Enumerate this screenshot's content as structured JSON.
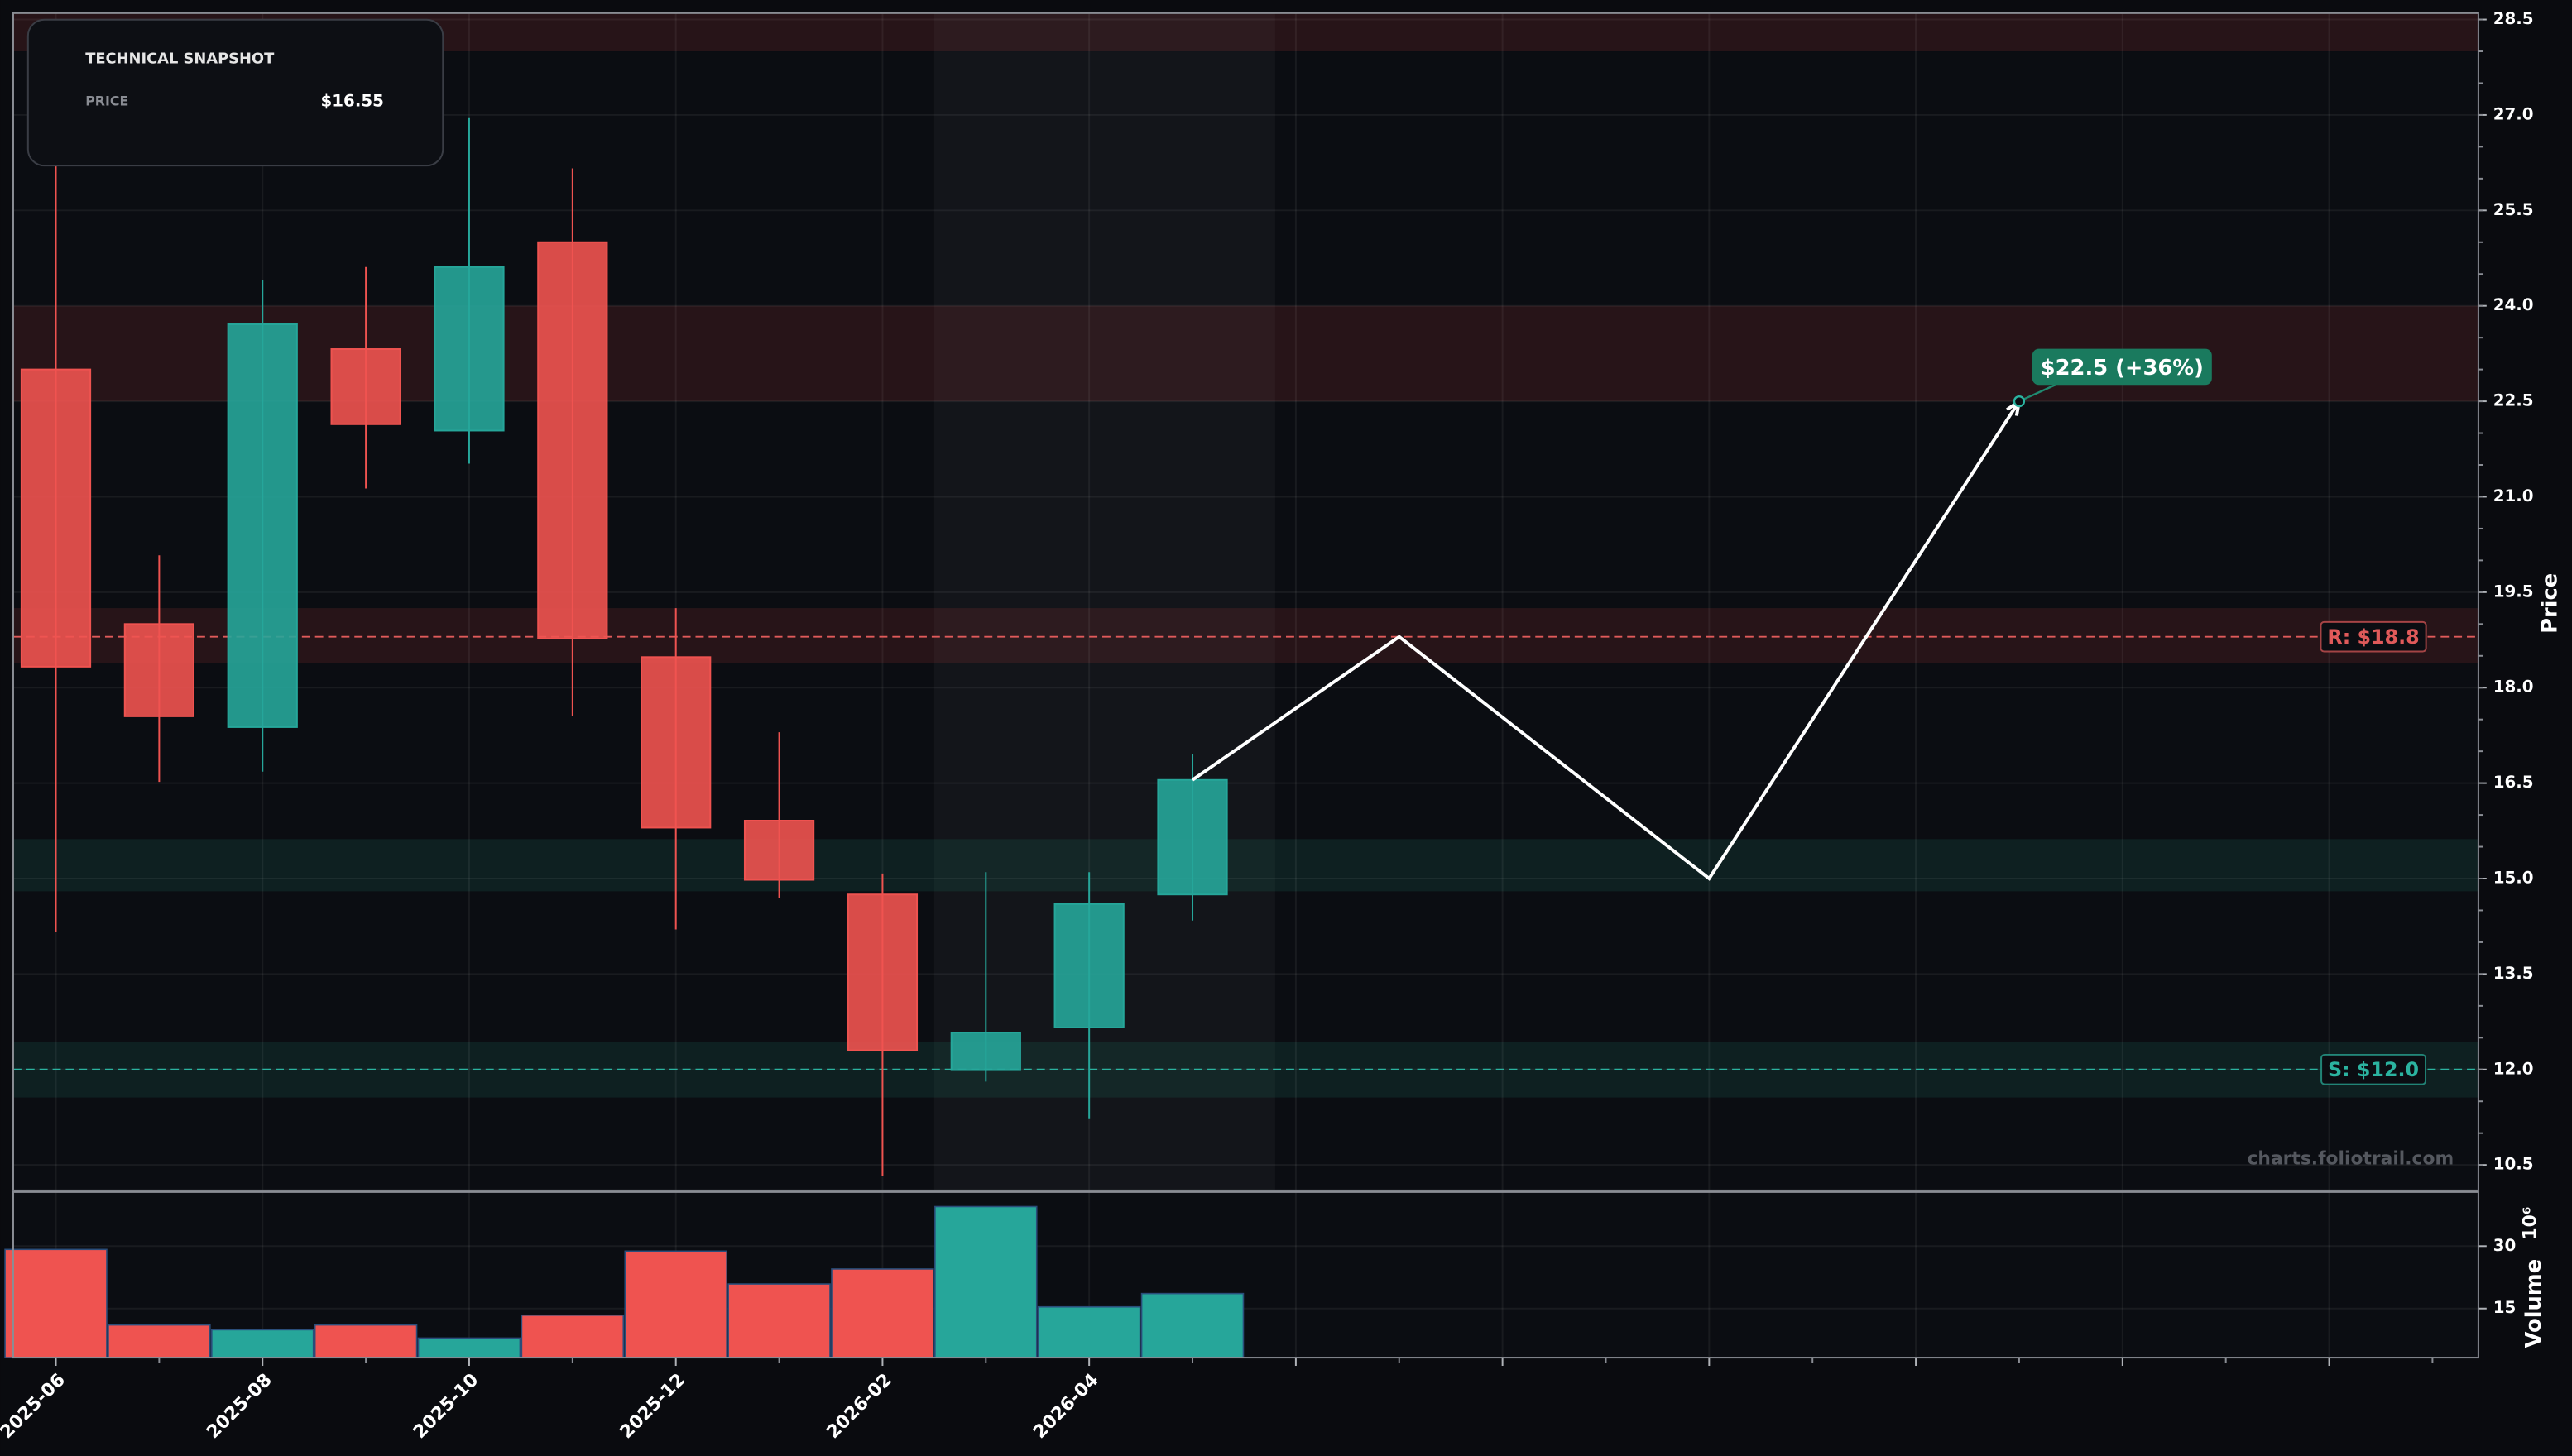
{
  "chart_data": {
    "type": "candlestick",
    "snapshot": {
      "title": "TECHNICAL SNAPSHOT",
      "price_label": "PRICE",
      "price": "$16.55"
    },
    "x": [
      "2025-06",
      "2025-07",
      "2025-08",
      "2025-09",
      "2025-10",
      "2025-11",
      "2025-12",
      "2026-01",
      "2026-02",
      "2026-03",
      "2026-04",
      "2026-05"
    ],
    "open": [
      23.0,
      19.0,
      17.38,
      23.32,
      22.04,
      25.0,
      18.48,
      15.91,
      14.75,
      11.99,
      12.66,
      14.75
    ],
    "high": [
      26.2,
      20.08,
      24.4,
      24.61,
      26.95,
      26.16,
      19.25,
      17.3,
      15.08,
      15.1,
      15.1,
      16.96
    ],
    "low": [
      14.16,
      16.52,
      16.68,
      21.13,
      21.52,
      17.55,
      14.2,
      14.7,
      10.32,
      11.81,
      11.22,
      14.34
    ],
    "close": [
      18.33,
      17.55,
      23.71,
      22.14,
      24.61,
      18.77,
      15.8,
      14.98,
      12.3,
      12.58,
      14.6,
      16.55
    ],
    "volume": [
      29.2,
      11.05,
      9.9,
      11.05,
      7.9,
      13.4,
      28.8,
      20.9,
      24.5,
      39.5,
      15.4,
      18.6
    ],
    "colors": {
      "up": "#26a69a",
      "down": "#ef5350"
    },
    "xticks": [
      "2025-06",
      "2025-08",
      "2025-10",
      "2025-12",
      "2026-02",
      "2026-04"
    ],
    "ylim": [
      10.1,
      28.6
    ],
    "yticks": [
      10.5,
      {
        "value": 12,
        "label": "12.0"
      },
      13.5,
      {
        "value": 15,
        "label": "15.0"
      },
      16.5,
      {
        "value": 18,
        "label": "18.0"
      },
      19.5,
      {
        "value": 21,
        "label": "21.0"
      },
      22.5,
      {
        "value": 24,
        "label": "24.0"
      },
      25.5,
      {
        "value": 27,
        "label": "27.0"
      },
      28.5
    ],
    "ylabel": "Price",
    "volume_ylim": [
      3.2,
      43
    ],
    "volume_yticks": [
      15,
      30
    ],
    "volume_label": "Volume",
    "volume_scale": "10⁶",
    "resistance": {
      "value": 18.8,
      "label": "R: $18.8"
    },
    "support": {
      "value": 12.0,
      "label": "S: $12.0"
    },
    "zones": [
      {
        "low": 28.0,
        "high": 28.6,
        "kind": "resistance"
      },
      {
        "low": 22.5,
        "high": 24.0,
        "kind": "resistance"
      },
      {
        "low": 18.38,
        "high": 19.25,
        "kind": "resistance"
      },
      {
        "low": 14.8,
        "high": 15.62,
        "kind": "support"
      },
      {
        "low": 11.56,
        "high": 12.43,
        "kind": "support"
      }
    ],
    "highlight": [
      "2026-03",
      "2026-05"
    ],
    "projection": {
      "x": [
        "2026-05",
        "2026-07",
        "2026-10",
        "2027-01"
      ],
      "values": [
        16.55,
        18.8,
        15.0,
        22.5
      ],
      "label": "$22.5 (+36%)"
    },
    "watermark": "charts.foliotrail.com",
    "grid": true
  }
}
